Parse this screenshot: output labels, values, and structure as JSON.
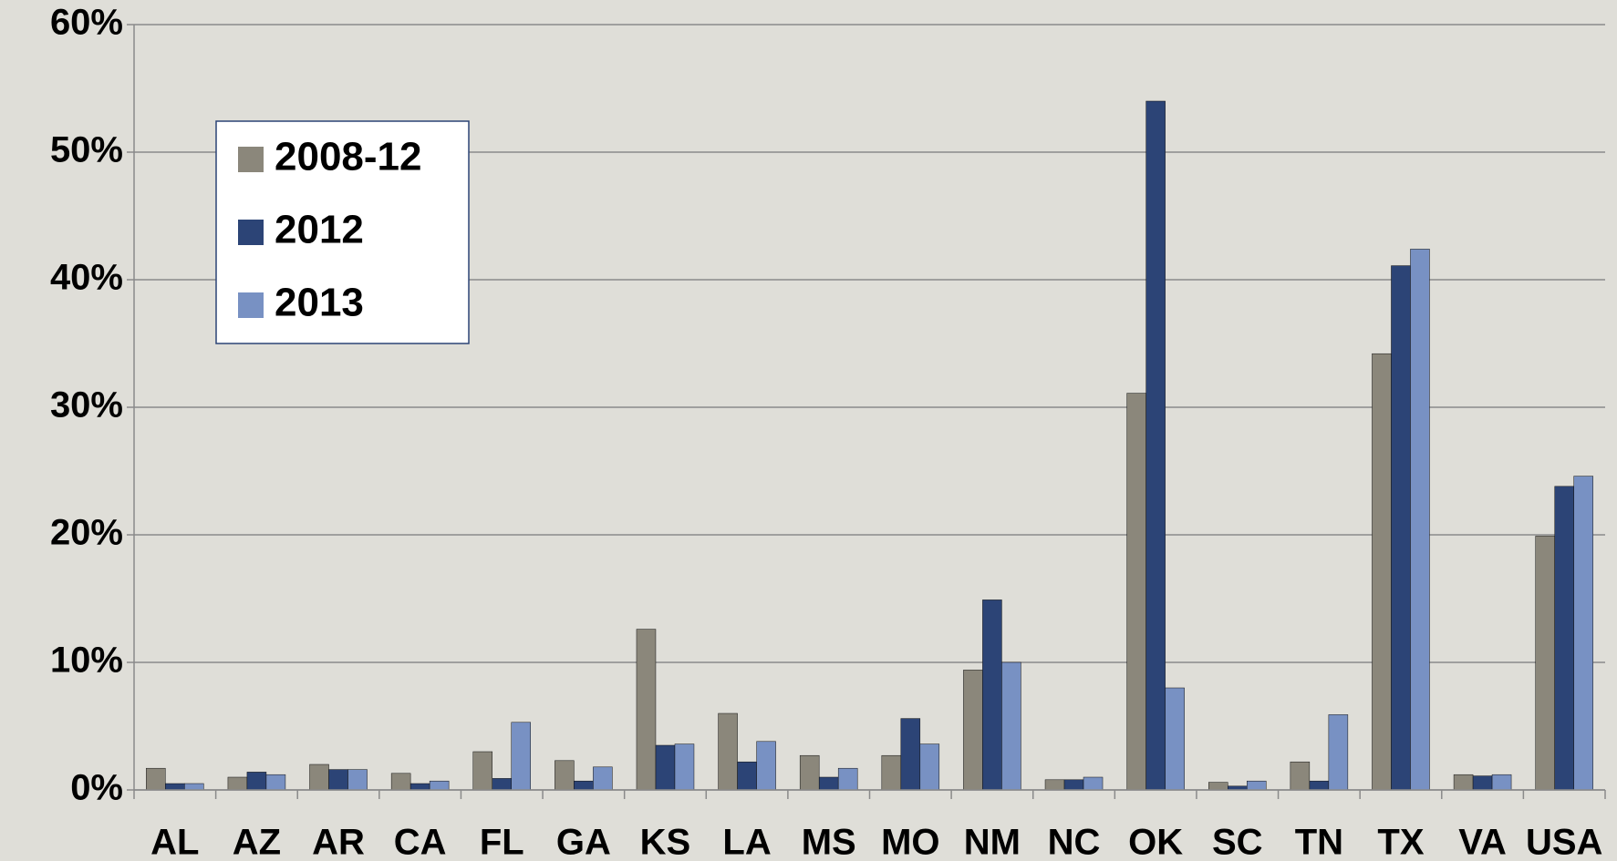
{
  "chart_data": {
    "type": "bar",
    "categories": [
      "AL",
      "AZ",
      "AR",
      "CA",
      "FL",
      "GA",
      "KS",
      "LA",
      "MS",
      "MO",
      "NM",
      "NC",
      "OK",
      "SC",
      "TN",
      "TX",
      "VA",
      "USA"
    ],
    "series": [
      {
        "name": "2008-12",
        "color": "#8b877b",
        "values": [
          1.7,
          1.0,
          2.0,
          1.3,
          3.0,
          2.3,
          12.6,
          6.0,
          2.7,
          2.7,
          9.4,
          0.8,
          31.1,
          0.6,
          2.2,
          34.2,
          1.2,
          19.9
        ]
      },
      {
        "name": "2012",
        "color": "#2c4476",
        "values": [
          0.5,
          1.4,
          1.6,
          0.5,
          0.9,
          0.7,
          3.5,
          2.2,
          1.0,
          5.6,
          14.9,
          0.8,
          54.0,
          0.3,
          0.7,
          41.1,
          1.1,
          23.8
        ]
      },
      {
        "name": "2013",
        "color": "#7891c3",
        "values": [
          0.5,
          1.2,
          1.6,
          0.7,
          5.3,
          1.8,
          3.6,
          3.8,
          1.7,
          3.6,
          10.0,
          1.0,
          8.0,
          0.7,
          5.9,
          42.4,
          1.2,
          24.6
        ]
      }
    ],
    "ylim": [
      0,
      60
    ],
    "yticks": [
      {
        "value": 0,
        "label": "0%"
      },
      {
        "value": 10,
        "label": "10%"
      },
      {
        "value": 20,
        "label": "20%"
      },
      {
        "value": 30,
        "label": "30%"
      },
      {
        "value": 40,
        "label": "40%"
      },
      {
        "value": 50,
        "label": "50%"
      },
      {
        "value": 60,
        "label": "60%"
      }
    ],
    "grid": true,
    "legend": "upper left"
  }
}
